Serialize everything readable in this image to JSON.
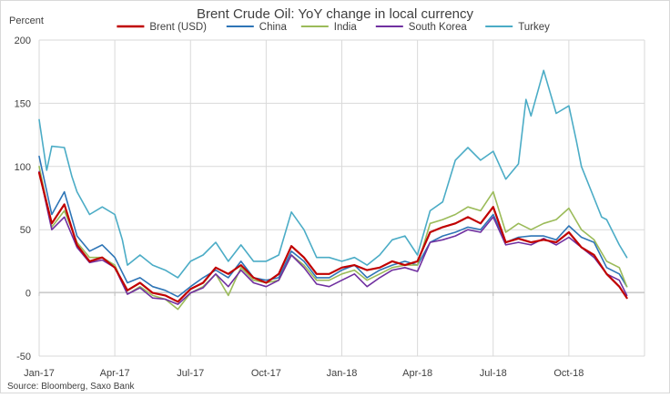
{
  "chart_data": {
    "type": "line",
    "title": "Brent Crude Oil: YoY change in local currency",
    "ylabel": "Percent",
    "source": "Source: Bloomberg, Saxo Bank",
    "ylim": [
      -50,
      200
    ],
    "yticks": [
      -50,
      0,
      50,
      100,
      150,
      200
    ],
    "x_range": [
      0,
      24
    ],
    "x_ticks": [
      {
        "x": 0,
        "label": "Jan-17"
      },
      {
        "x": 3,
        "label": "Apr-17"
      },
      {
        "x": 6,
        "label": "Jul-17"
      },
      {
        "x": 9,
        "label": "Oct-17"
      },
      {
        "x": 12,
        "label": "Jan-18"
      },
      {
        "x": 15,
        "label": "Apr-18"
      },
      {
        "x": 18,
        "label": "Jul-18"
      },
      {
        "x": 21,
        "label": "Oct-18"
      }
    ],
    "grid": true,
    "legend_position": "top",
    "series": [
      {
        "name": "Brent (USD)",
        "color": "#C00000",
        "width": 2.2,
        "points": [
          [
            0,
            95
          ],
          [
            0.5,
            55
          ],
          [
            1,
            70
          ],
          [
            1.5,
            38
          ],
          [
            2,
            25
          ],
          [
            2.5,
            28
          ],
          [
            3,
            20
          ],
          [
            3.5,
            2
          ],
          [
            4,
            8
          ],
          [
            4.5,
            0
          ],
          [
            5,
            -2
          ],
          [
            5.5,
            -7
          ],
          [
            6,
            3
          ],
          [
            6.5,
            8
          ],
          [
            7,
            20
          ],
          [
            7.5,
            15
          ],
          [
            8,
            22
          ],
          [
            8.5,
            12
          ],
          [
            9,
            8
          ],
          [
            9.5,
            15
          ],
          [
            10,
            37
          ],
          [
            10.5,
            28
          ],
          [
            11,
            15
          ],
          [
            11.5,
            15
          ],
          [
            12,
            20
          ],
          [
            12.5,
            22
          ],
          [
            13,
            18
          ],
          [
            13.5,
            20
          ],
          [
            14,
            25
          ],
          [
            14.5,
            22
          ],
          [
            15,
            25
          ],
          [
            15.5,
            48
          ],
          [
            16,
            52
          ],
          [
            16.5,
            55
          ],
          [
            17,
            60
          ],
          [
            17.5,
            55
          ],
          [
            18,
            68
          ],
          [
            18.5,
            40
          ],
          [
            19,
            43
          ],
          [
            19.5,
            40
          ],
          [
            20,
            42
          ],
          [
            20.5,
            40
          ],
          [
            21,
            48
          ],
          [
            21.5,
            36
          ],
          [
            22,
            30
          ],
          [
            22.5,
            15
          ],
          [
            23,
            5
          ],
          [
            23.3,
            -4
          ]
        ]
      },
      {
        "name": "China",
        "color": "#2E75B6",
        "width": 1.6,
        "points": [
          [
            0,
            108
          ],
          [
            0.5,
            62
          ],
          [
            1,
            80
          ],
          [
            1.5,
            45
          ],
          [
            2,
            33
          ],
          [
            2.5,
            38
          ],
          [
            3,
            28
          ],
          [
            3.5,
            8
          ],
          [
            4,
            12
          ],
          [
            4.5,
            5
          ],
          [
            5,
            2
          ],
          [
            5.5,
            -3
          ],
          [
            6,
            5
          ],
          [
            6.5,
            12
          ],
          [
            7,
            18
          ],
          [
            7.5,
            12
          ],
          [
            8,
            25
          ],
          [
            8.5,
            12
          ],
          [
            9,
            10
          ],
          [
            9.5,
            12
          ],
          [
            10,
            33
          ],
          [
            10.5,
            25
          ],
          [
            11,
            12
          ],
          [
            11.5,
            12
          ],
          [
            12,
            18
          ],
          [
            12.5,
            22
          ],
          [
            13,
            12
          ],
          [
            13.5,
            18
          ],
          [
            14,
            22
          ],
          [
            14.5,
            25
          ],
          [
            15,
            22
          ],
          [
            15.5,
            40
          ],
          [
            16,
            45
          ],
          [
            16.5,
            48
          ],
          [
            17,
            52
          ],
          [
            17.5,
            50
          ],
          [
            18,
            62
          ],
          [
            18.5,
            40
          ],
          [
            19,
            44
          ],
          [
            19.5,
            45
          ],
          [
            20,
            45
          ],
          [
            20.5,
            42
          ],
          [
            21,
            53
          ],
          [
            21.5,
            44
          ],
          [
            22,
            40
          ],
          [
            22.5,
            20
          ],
          [
            23,
            15
          ],
          [
            23.3,
            5
          ]
        ]
      },
      {
        "name": "India",
        "color": "#9BBB59",
        "width": 1.6,
        "points": [
          [
            0,
            100
          ],
          [
            0.5,
            52
          ],
          [
            1,
            65
          ],
          [
            1.5,
            40
          ],
          [
            2,
            28
          ],
          [
            2.5,
            28
          ],
          [
            3,
            22
          ],
          [
            3.5,
            -1
          ],
          [
            4,
            5
          ],
          [
            4.5,
            -2
          ],
          [
            5,
            -5
          ],
          [
            5.5,
            -13
          ],
          [
            6,
            0
          ],
          [
            6.5,
            5
          ],
          [
            7,
            15
          ],
          [
            7.5,
            -2
          ],
          [
            8,
            20
          ],
          [
            8.5,
            10
          ],
          [
            9,
            8
          ],
          [
            9.5,
            10
          ],
          [
            10,
            30
          ],
          [
            10.5,
            22
          ],
          [
            11,
            10
          ],
          [
            11.5,
            10
          ],
          [
            12,
            15
          ],
          [
            12.5,
            18
          ],
          [
            13,
            10
          ],
          [
            13.5,
            15
          ],
          [
            14,
            20
          ],
          [
            14.5,
            22
          ],
          [
            15,
            22
          ],
          [
            15.5,
            55
          ],
          [
            16,
            58
          ],
          [
            16.5,
            62
          ],
          [
            17,
            68
          ],
          [
            17.5,
            65
          ],
          [
            18,
            80
          ],
          [
            18.5,
            48
          ],
          [
            19,
            55
          ],
          [
            19.5,
            50
          ],
          [
            20,
            55
          ],
          [
            20.5,
            58
          ],
          [
            21,
            67
          ],
          [
            21.5,
            50
          ],
          [
            22,
            42
          ],
          [
            22.5,
            25
          ],
          [
            23,
            20
          ],
          [
            23.3,
            5
          ]
        ]
      },
      {
        "name": "South Korea",
        "color": "#7030A0",
        "width": 1.6,
        "points": [
          [
            0,
            96
          ],
          [
            0.5,
            50
          ],
          [
            1,
            60
          ],
          [
            1.5,
            36
          ],
          [
            2,
            24
          ],
          [
            2.5,
            26
          ],
          [
            3,
            20
          ],
          [
            3.5,
            -1
          ],
          [
            4,
            4
          ],
          [
            4.5,
            -4
          ],
          [
            5,
            -5
          ],
          [
            5.5,
            -9
          ],
          [
            6,
            0
          ],
          [
            6.5,
            4
          ],
          [
            7,
            15
          ],
          [
            7.5,
            5
          ],
          [
            8,
            18
          ],
          [
            8.5,
            8
          ],
          [
            9,
            5
          ],
          [
            9.5,
            10
          ],
          [
            10,
            30
          ],
          [
            10.5,
            20
          ],
          [
            11,
            7
          ],
          [
            11.5,
            5
          ],
          [
            12,
            10
          ],
          [
            12.5,
            15
          ],
          [
            13,
            5
          ],
          [
            13.5,
            12
          ],
          [
            14,
            18
          ],
          [
            14.5,
            20
          ],
          [
            15,
            17
          ],
          [
            15.5,
            40
          ],
          [
            16,
            42
          ],
          [
            16.5,
            45
          ],
          [
            17,
            50
          ],
          [
            17.5,
            48
          ],
          [
            18,
            60
          ],
          [
            18.5,
            38
          ],
          [
            19,
            40
          ],
          [
            19.5,
            38
          ],
          [
            20,
            43
          ],
          [
            20.5,
            38
          ],
          [
            21,
            44
          ],
          [
            21.5,
            36
          ],
          [
            22,
            28
          ],
          [
            22.5,
            15
          ],
          [
            23,
            10
          ],
          [
            23.3,
            -2
          ]
        ]
      },
      {
        "name": "Turkey",
        "color": "#4BACC6",
        "width": 1.6,
        "points": [
          [
            0,
            137
          ],
          [
            0.3,
            97
          ],
          [
            0.5,
            116
          ],
          [
            1,
            115
          ],
          [
            1.3,
            92
          ],
          [
            1.5,
            80
          ],
          [
            2,
            62
          ],
          [
            2.5,
            68
          ],
          [
            3,
            62
          ],
          [
            3.3,
            42
          ],
          [
            3.5,
            22
          ],
          [
            4,
            30
          ],
          [
            4.5,
            22
          ],
          [
            5,
            18
          ],
          [
            5.5,
            12
          ],
          [
            6,
            25
          ],
          [
            6.5,
            30
          ],
          [
            7,
            40
          ],
          [
            7.5,
            25
          ],
          [
            8,
            38
          ],
          [
            8.5,
            25
          ],
          [
            9,
            25
          ],
          [
            9.5,
            30
          ],
          [
            10,
            64
          ],
          [
            10.5,
            50
          ],
          [
            11,
            28
          ],
          [
            11.5,
            28
          ],
          [
            12,
            25
          ],
          [
            12.5,
            28
          ],
          [
            13,
            22
          ],
          [
            13.5,
            30
          ],
          [
            14,
            42
          ],
          [
            14.5,
            45
          ],
          [
            15,
            30
          ],
          [
            15.5,
            65
          ],
          [
            16,
            72
          ],
          [
            16.5,
            105
          ],
          [
            17,
            115
          ],
          [
            17.5,
            105
          ],
          [
            18,
            112
          ],
          [
            18.5,
            90
          ],
          [
            19,
            102
          ],
          [
            19.3,
            153
          ],
          [
            19.5,
            140
          ],
          [
            20,
            176
          ],
          [
            20.5,
            142
          ],
          [
            21,
            148
          ],
          [
            21.3,
            120
          ],
          [
            21.5,
            100
          ],
          [
            22,
            75
          ],
          [
            22.3,
            60
          ],
          [
            22.5,
            58
          ],
          [
            23,
            38
          ],
          [
            23.3,
            28
          ]
        ]
      }
    ]
  }
}
